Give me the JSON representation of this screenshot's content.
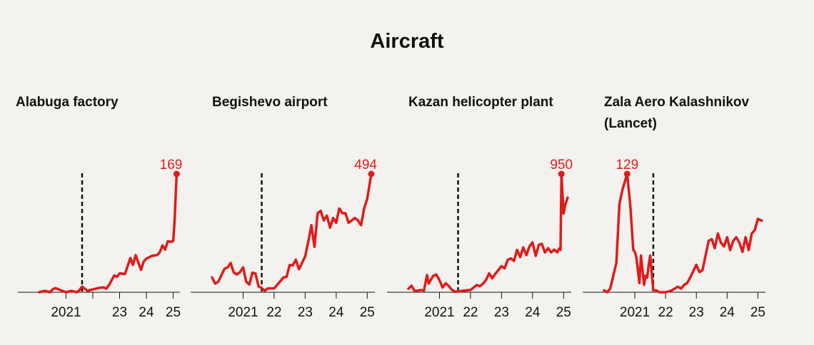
{
  "title": "Aircraft",
  "colors": {
    "series": "#e01b1b",
    "axis": "#111111",
    "background": "#f4f2ee"
  },
  "chart_data": [
    {
      "type": "line",
      "title": [
        "Alabuga factory"
      ],
      "ylim": [
        0,
        169
      ],
      "xlim": [
        2020.0,
        2025.2
      ],
      "xticks": [
        {
          "pos": 2021,
          "label": "2021"
        },
        {
          "pos": 2023,
          "label": "23"
        },
        {
          "pos": 2024,
          "label": "24"
        },
        {
          "pos": 2025,
          "label": "25"
        }
      ],
      "minor_ticks": [
        2022
      ],
      "event_line": 2021.6,
      "peak": {
        "x": 2025.13,
        "y": 169,
        "label": "169"
      },
      "x": [
        2020.0,
        2020.2,
        2020.4,
        2020.5,
        2020.6,
        2020.8,
        2021.0,
        2021.2,
        2021.4,
        2021.5,
        2021.6,
        2021.8,
        2022.0,
        2022.2,
        2022.4,
        2022.5,
        2022.6,
        2022.8,
        2022.9,
        2023.0,
        2023.2,
        2023.4,
        2023.5,
        2023.6,
        2023.8,
        2023.9,
        2024.0,
        2024.2,
        2024.4,
        2024.5,
        2024.6,
        2024.7,
        2024.8,
        2024.9,
        2025.0,
        2025.05,
        2025.13
      ],
      "y": [
        0,
        2,
        0,
        4,
        6,
        3,
        0,
        2,
        0,
        3,
        8,
        2,
        4,
        6,
        7,
        5,
        10,
        24,
        22,
        27,
        26,
        49,
        39,
        53,
        32,
        44,
        48,
        52,
        53,
        57,
        67,
        61,
        73,
        72,
        73,
        100,
        169
      ]
    },
    {
      "type": "line",
      "title": [
        "Begishevo airport"
      ],
      "ylim": [
        0,
        494
      ],
      "xlim": [
        2020.0,
        2025.2
      ],
      "xticks": [
        {
          "pos": 2021,
          "label": "2021"
        },
        {
          "pos": 2022,
          "label": "22"
        },
        {
          "pos": 2023,
          "label": "23"
        },
        {
          "pos": 2024,
          "label": "24"
        },
        {
          "pos": 2025,
          "label": "25"
        }
      ],
      "minor_ticks": [],
      "event_line": 2021.6,
      "peak": {
        "x": 2025.13,
        "y": 494,
        "label": "494"
      },
      "x": [
        2020.0,
        2020.1,
        2020.2,
        2020.4,
        2020.5,
        2020.6,
        2020.7,
        2020.8,
        2020.9,
        2021.0,
        2021.1,
        2021.2,
        2021.3,
        2021.4,
        2021.5,
        2021.6,
        2021.7,
        2021.8,
        2022.0,
        2022.2,
        2022.3,
        2022.4,
        2022.5,
        2022.6,
        2022.7,
        2022.8,
        2023.0,
        2023.1,
        2023.2,
        2023.3,
        2023.4,
        2023.5,
        2023.6,
        2023.7,
        2023.8,
        2023.9,
        2024.0,
        2024.1,
        2024.2,
        2024.3,
        2024.4,
        2024.5,
        2024.6,
        2024.7,
        2024.8,
        2024.9,
        2025.0,
        2025.13
      ],
      "y": [
        62,
        36,
        44,
        98,
        104,
        122,
        82,
        74,
        84,
        104,
        44,
        32,
        82,
        78,
        24,
        18,
        6,
        16,
        16,
        46,
        62,
        64,
        114,
        112,
        136,
        96,
        150,
        210,
        280,
        190,
        330,
        340,
        300,
        320,
        270,
        310,
        290,
        350,
        330,
        330,
        290,
        300,
        310,
        300,
        280,
        350,
        390,
        494
      ]
    },
    {
      "type": "line",
      "title": [
        "Kazan helicopter plant"
      ],
      "ylim": [
        0,
        950
      ],
      "xlim": [
        2020.0,
        2025.2
      ],
      "xticks": [
        {
          "pos": 2021,
          "label": "2021"
        },
        {
          "pos": 2022,
          "label": "22"
        },
        {
          "pos": 2023,
          "label": "23"
        },
        {
          "pos": 2024,
          "label": "24"
        },
        {
          "pos": 2025,
          "label": "25"
        }
      ],
      "minor_ticks": [],
      "event_line": 2021.6,
      "peak": {
        "x": 2024.93,
        "y": 950,
        "label": "950"
      },
      "x": [
        2020.0,
        2020.1,
        2020.2,
        2020.4,
        2020.5,
        2020.6,
        2020.65,
        2020.8,
        2020.9,
        2021.0,
        2021.1,
        2021.2,
        2021.3,
        2021.4,
        2021.5,
        2021.6,
        2021.8,
        2022.0,
        2022.2,
        2022.3,
        2022.4,
        2022.5,
        2022.6,
        2022.7,
        2022.8,
        2023.0,
        2023.1,
        2023.2,
        2023.3,
        2023.4,
        2023.5,
        2023.6,
        2023.7,
        2023.8,
        2023.9,
        2024.0,
        2024.1,
        2024.2,
        2024.3,
        2024.4,
        2024.5,
        2024.6,
        2024.7,
        2024.8,
        2024.85,
        2024.9,
        2024.93,
        2025.0,
        2025.05,
        2025.13
      ],
      "y": [
        28,
        52,
        10,
        18,
        14,
        138,
        70,
        132,
        142,
        96,
        38,
        72,
        50,
        20,
        4,
        6,
        14,
        18,
        58,
        48,
        68,
        98,
        152,
        112,
        148,
        210,
        192,
        260,
        272,
        252,
        340,
        282,
        360,
        298,
        368,
        400,
        292,
        380,
        388,
        320,
        354,
        320,
        342,
        320,
        350,
        340,
        950,
        632,
        700,
        760
      ]
    },
    {
      "type": "line",
      "title": [
        "Zala Aero Kalashnikov",
        "(Lancet)"
      ],
      "ylim": [
        0,
        129
      ],
      "xlim": [
        2020.0,
        2025.2
      ],
      "xticks": [
        {
          "pos": 2021,
          "label": "2021"
        },
        {
          "pos": 2022,
          "label": "22"
        },
        {
          "pos": 2023,
          "label": "23"
        },
        {
          "pos": 2024,
          "label": "24"
        },
        {
          "pos": 2025,
          "label": "25"
        }
      ],
      "minor_ticks": [],
      "event_line": 2021.6,
      "peak": {
        "x": 2020.75,
        "y": 129,
        "label": "129"
      },
      "x": [
        2020.0,
        2020.1,
        2020.2,
        2020.4,
        2020.5,
        2020.6,
        2020.75,
        2020.85,
        2020.95,
        2021.0,
        2021.05,
        2021.15,
        2021.2,
        2021.3,
        2021.35,
        2021.4,
        2021.45,
        2021.5,
        2021.6,
        2021.7,
        2021.8,
        2022.0,
        2022.2,
        2022.4,
        2022.5,
        2022.6,
        2022.7,
        2022.8,
        2023.0,
        2023.1,
        2023.2,
        2023.4,
        2023.5,
        2023.6,
        2023.7,
        2023.8,
        2023.9,
        2024.0,
        2024.1,
        2024.2,
        2024.3,
        2024.4,
        2024.5,
        2024.6,
        2024.7,
        2024.8,
        2024.9,
        2025.0,
        2025.13
      ],
      "y": [
        2,
        0,
        4,
        32,
        96,
        112,
        129,
        96,
        46,
        44,
        38,
        10,
        40,
        8,
        18,
        16,
        30,
        40,
        2,
        2,
        0,
        0,
        2,
        6,
        4,
        8,
        10,
        16,
        30,
        22,
        24,
        56,
        58,
        48,
        64,
        54,
        50,
        60,
        46,
        56,
        60,
        54,
        44,
        60,
        46,
        64,
        68,
        80,
        78
      ]
    }
  ]
}
